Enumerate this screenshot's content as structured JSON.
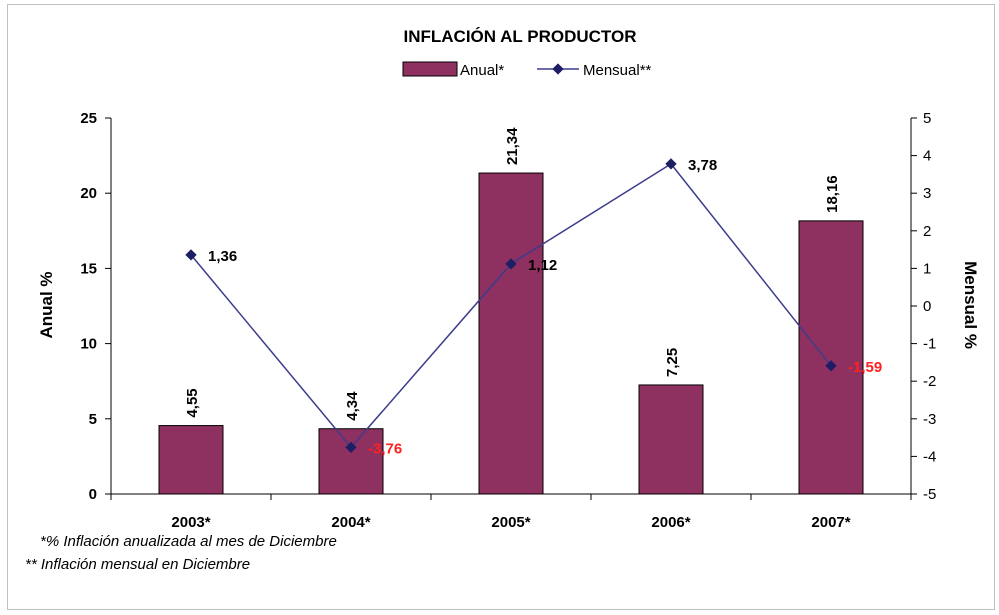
{
  "chart_data": {
    "type": "bar",
    "title": "INFLACIÓN AL PRODUCTOR",
    "categories": [
      "2003*",
      "2004*",
      "2005*",
      "2006*",
      "2007*"
    ],
    "ylabel_left": "Anual %",
    "ylabel_right": "Mensual %",
    "ylim_left": [
      0,
      25
    ],
    "ylim_right": [
      -5,
      5
    ],
    "yticks_left": [
      "0",
      "5",
      "10",
      "15",
      "20",
      "25"
    ],
    "yticks_right": [
      "-5",
      "-4",
      "-3",
      "-2",
      "-1",
      "0",
      "1",
      "2",
      "3",
      "4",
      "5"
    ],
    "legend_position": "top-center",
    "grid": false,
    "series": [
      {
        "name": "Anual*",
        "kind": "bar",
        "axis": "left",
        "color": "#8e3060",
        "values": [
          4.55,
          4.34,
          21.34,
          7.25,
          18.16
        ],
        "labels": [
          "4,55",
          "4,34",
          "21,34",
          "7,25",
          "18,16"
        ]
      },
      {
        "name": "Mensual**",
        "kind": "line",
        "axis": "right",
        "color": "#3c3c8c",
        "marker_color": "#1e1e64",
        "values": [
          1.36,
          -3.76,
          1.12,
          3.78,
          -1.59
        ],
        "labels": [
          "1,36",
          "-3,76",
          "1,12",
          "3,78",
          "-1,59"
        ],
        "label_colors": [
          "#000000",
          "#ff2020",
          "#000000",
          "#000000",
          "#ff2020"
        ]
      }
    ]
  },
  "footnotes": {
    "annual": "*% Inflación anualizada al mes de Diciembre",
    "monthly": "** Inflación mensual en Diciembre"
  }
}
